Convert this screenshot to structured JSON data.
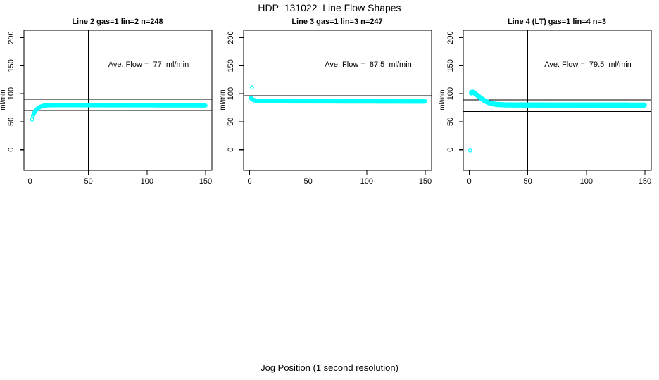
{
  "figure": {
    "title": "HDP_131022  Line Flow Shapes",
    "xlabel": "Jog Position (1 second resolution)",
    "background_color": "#ffffff",
    "point_color": "#00ffff",
    "axis_color": "#000000"
  },
  "chart_data": [
    {
      "type": "scatter",
      "title": "Line 2 gas=1 lin=2 n=248",
      "ylabel": "ml/min",
      "annotation": "Ave. Flow =  77  ml/min",
      "ave_flow_ml_min": 77,
      "n_points": 248,
      "x_ticks": [
        0,
        50,
        100,
        150
      ],
      "y_ticks": [
        0,
        50,
        100,
        150,
        200
      ],
      "xlim": [
        -5,
        155
      ],
      "ylim": [
        -37,
        213
      ],
      "grid": false,
      "vline_x": 50,
      "ref_lines": [
        90,
        70
      ],
      "outliers": [
        [
          1.9,
          54
        ]
      ],
      "anchors": [
        [
          2.6,
          60
        ],
        [
          3.2,
          63
        ],
        [
          3.8,
          65.5
        ],
        [
          4.4,
          67.5
        ],
        [
          5,
          69.5
        ],
        [
          5.6,
          71
        ],
        [
          6.2,
          72.3
        ],
        [
          7,
          73.8
        ],
        [
          8,
          75.2
        ],
        [
          9,
          76.2
        ],
        [
          10,
          77
        ],
        [
          11,
          77.6
        ],
        [
          12,
          78.1
        ],
        [
          13,
          78.4
        ],
        [
          14,
          78.7
        ],
        [
          16,
          79
        ],
        [
          18,
          79.1
        ],
        [
          20,
          79.2
        ],
        [
          30,
          79.2
        ],
        [
          50,
          79.1
        ],
        [
          80,
          79
        ],
        [
          110,
          78.9
        ],
        [
          150,
          78.8
        ]
      ],
      "band_offsets": [
        0,
        0.9
      ],
      "point_step": 0.6
    },
    {
      "type": "scatter",
      "title": "Line 3 gas=1 lin=3 n=247",
      "ylabel": "ml/min",
      "annotation": "Ave. Flow =  87.5  ml/min",
      "ave_flow_ml_min": 87.5,
      "n_points": 247,
      "x_ticks": [
        0,
        50,
        100,
        150
      ],
      "y_ticks": [
        0,
        50,
        100,
        150,
        200
      ],
      "xlim": [
        -5,
        155
      ],
      "ylim": [
        -37,
        213
      ],
      "grid": false,
      "vline_x": 50,
      "ref_lines": [
        96,
        78
      ],
      "outliers": [
        [
          2,
          111
        ]
      ],
      "anchors": [
        [
          1.2,
          92.5
        ],
        [
          1.8,
          91.2
        ],
        [
          2.4,
          90.2
        ],
        [
          3,
          89.5
        ],
        [
          4,
          88.7
        ],
        [
          5,
          88.2
        ],
        [
          6,
          87.9
        ],
        [
          8,
          87.6
        ],
        [
          10,
          87.4
        ],
        [
          15,
          87.1
        ],
        [
          20,
          87
        ],
        [
          30,
          86.8
        ],
        [
          50,
          86.7
        ],
        [
          80,
          86.6
        ],
        [
          120,
          86.5
        ],
        [
          150,
          86.4
        ]
      ],
      "band_offsets": [
        0,
        -0.8
      ],
      "point_step": 0.6
    },
    {
      "type": "scatter",
      "title": "Line 4 (LT) gas=1 lin=4 n=3",
      "ylabel": "ml/min",
      "annotation": "Ave. Flow =  79.5  ml/min",
      "ave_flow_ml_min": 79.5,
      "n_points": 3,
      "x_ticks": [
        0,
        50,
        100,
        150
      ],
      "y_ticks": [
        0,
        50,
        100,
        150,
        200
      ],
      "xlim": [
        -5,
        155
      ],
      "ylim": [
        -37,
        213
      ],
      "grid": false,
      "vline_x": 50,
      "ref_lines": [
        89,
        68
      ],
      "outliers": [
        [
          0.8,
          -1.5
        ]
      ],
      "anchors": [
        [
          1.5,
          101.5
        ],
        [
          2,
          102.3
        ],
        [
          2.6,
          102.8
        ],
        [
          3.2,
          102.5
        ],
        [
          4,
          101.5
        ],
        [
          5,
          100.2
        ],
        [
          6,
          98.6
        ],
        [
          7,
          96.9
        ],
        [
          8,
          95.2
        ],
        [
          9,
          93.5
        ],
        [
          10,
          91.9
        ],
        [
          11,
          90.4
        ],
        [
          12,
          89
        ],
        [
          13,
          87.7
        ],
        [
          14,
          86.5
        ],
        [
          15,
          85.5
        ],
        [
          16,
          84.6
        ],
        [
          17,
          83.8
        ],
        [
          18,
          83.1
        ],
        [
          19,
          82.5
        ],
        [
          20,
          82
        ],
        [
          22,
          81.2
        ],
        [
          24,
          80.7
        ],
        [
          27,
          80.3
        ],
        [
          30,
          80
        ],
        [
          35,
          79.9
        ],
        [
          40,
          79.8
        ],
        [
          50,
          79.8
        ],
        [
          70,
          79.7
        ],
        [
          90,
          79.7
        ],
        [
          110,
          79.6
        ],
        [
          130,
          79.6
        ],
        [
          150,
          79.5
        ]
      ],
      "band_offsets": [
        -1.1,
        0,
        1.1
      ],
      "point_step": 0.6
    }
  ]
}
